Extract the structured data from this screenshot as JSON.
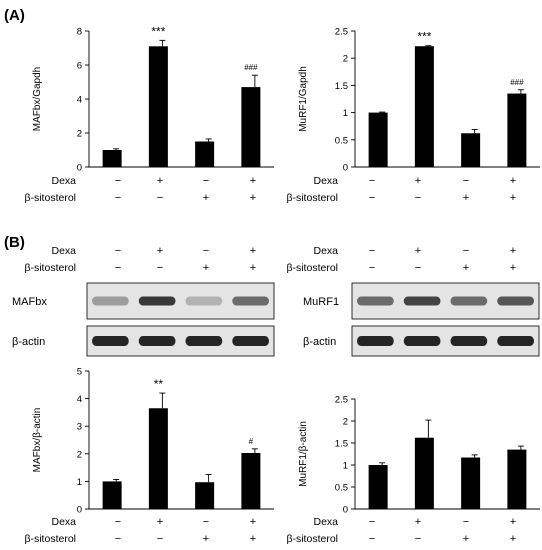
{
  "panels": {
    "A": "(A)",
    "B": "(B)"
  },
  "treatment_labels": {
    "dexa": "Dexa",
    "sitosterol": "β-sitosterol"
  },
  "treatment_matrix": {
    "dexa": [
      "−",
      "+",
      "−",
      "+"
    ],
    "sitosterol": [
      "−",
      "−",
      "+",
      "+"
    ]
  },
  "blots": [
    {
      "protein": "MAFbx",
      "loading": "β-actin"
    },
    {
      "protein": "MuRF1",
      "loading": "β-actin"
    }
  ],
  "colors": {
    "bar": "#000000",
    "axis": "#000000",
    "blot_background": "#e4e4e4",
    "band": "#1a1a1a"
  },
  "chart_data": [
    {
      "type": "bar",
      "panel": "A",
      "ylabel": "MAFbx/Gapdh",
      "ylim": [
        0,
        8
      ],
      "yticks": [
        "0",
        "2",
        "4",
        "6",
        "8"
      ],
      "values": [
        1.0,
        7.1,
        1.5,
        4.7
      ],
      "errors": [
        0.07,
        0.35,
        0.15,
        0.7
      ],
      "annotations": [
        "",
        "***",
        "",
        "###"
      ]
    },
    {
      "type": "bar",
      "panel": "A",
      "ylabel": "MuRF1/Gapdh",
      "ylim": [
        0,
        2.5
      ],
      "yticks": [
        "0",
        "0.5",
        "1",
        "1.5",
        "2",
        "2.5"
      ],
      "values": [
        1.0,
        2.22,
        0.62,
        1.35
      ],
      "errors": [
        0.01,
        0.01,
        0.07,
        0.07
      ],
      "annotations": [
        "",
        "***",
        "",
        "###"
      ]
    },
    {
      "type": "bar",
      "panel": "B",
      "ylabel": "MAFbx/β-actin",
      "ylim": [
        0,
        5
      ],
      "yticks": [
        "0",
        "1",
        "2",
        "3",
        "4",
        "5"
      ],
      "values": [
        1.0,
        3.65,
        0.97,
        2.03
      ],
      "errors": [
        0.07,
        0.55,
        0.28,
        0.15
      ],
      "annotations": [
        "",
        "**",
        "",
        "#"
      ]
    },
    {
      "type": "bar",
      "panel": "B",
      "ylabel": "MuRF1/β-actin",
      "ylim": [
        0,
        2.5
      ],
      "yticks": [
        "0",
        "0.5",
        "1",
        "1.5",
        "2",
        "2.5"
      ],
      "values": [
        1.0,
        1.62,
        1.17,
        1.35
      ],
      "errors": [
        0.05,
        0.4,
        0.06,
        0.08
      ],
      "annotations": [
        "",
        "",
        "",
        ""
      ]
    }
  ]
}
